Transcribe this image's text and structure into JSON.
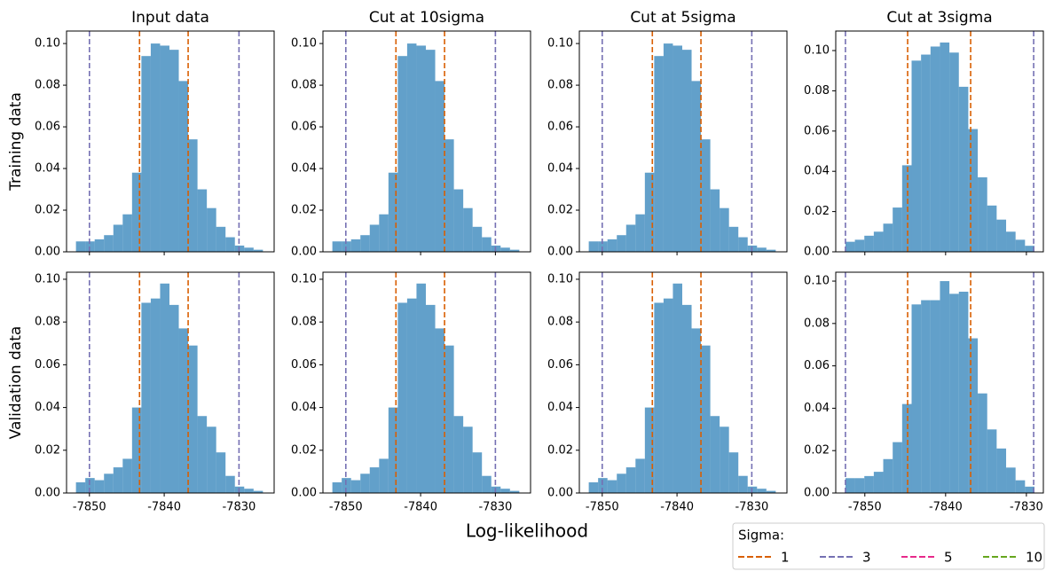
{
  "figure": {
    "xlabel": "Log-likelihood",
    "legend": {
      "title": "Sigma:",
      "entries": [
        {
          "label": "1",
          "color": "#d95f02"
        },
        {
          "label": "3",
          "color": "#7570b3"
        },
        {
          "label": "5",
          "color": "#e7298a"
        },
        {
          "label": "10",
          "color": "#66a61e"
        }
      ]
    }
  },
  "chart_data": [
    {
      "type": "histogram",
      "title": "Input data",
      "ylabel": "Training data",
      "color": "#1f77b4",
      "alpha": 0.7,
      "bins": [
        -7851.8,
        -7850.55,
        -7849.3,
        -7848.05,
        -7846.8,
        -7845.55,
        -7844.3,
        -7843.05,
        -7841.8,
        -7840.55,
        -7839.3,
        -7838.05,
        -7836.8,
        -7835.55,
        -7834.3,
        -7833.05,
        -7831.8,
        -7830.55,
        -7829.3,
        -7828.05,
        -7826.8
      ],
      "values": [
        0.005,
        0.005,
        0.006,
        0.008,
        0.013,
        0.018,
        0.038,
        0.094,
        0.1,
        0.099,
        0.097,
        0.082,
        0.054,
        0.03,
        0.021,
        0.012,
        0.007,
        0.003,
        0.002,
        0.001
      ],
      "xlim": [
        -7853.06,
        -7825.3
      ],
      "ylim": [
        0,
        0.106
      ],
      "xticks": [
        -7850,
        -7840,
        -7830
      ],
      "yticks": [
        {
          "value": 0,
          "label": "0.00"
        },
        0.02,
        0.04,
        0.06,
        0.08,
        {
          "value": 0.1,
          "label": "0.10"
        }
      ],
      "vlines": [
        {
          "value": -7843.3,
          "color": "#d95f02"
        },
        {
          "value": -7836.8,
          "color": "#d95f02"
        },
        {
          "value": -7850.0,
          "color": "#7570b3"
        },
        {
          "value": -7830.0,
          "color": "#7570b3"
        }
      ]
    },
    {
      "type": "histogram",
      "title": "Cut at 10sigma",
      "color": "#1f77b4",
      "alpha": 0.7,
      "bins": [
        -7851.8,
        -7850.55,
        -7849.3,
        -7848.05,
        -7846.8,
        -7845.55,
        -7844.3,
        -7843.05,
        -7841.8,
        -7840.55,
        -7839.3,
        -7838.05,
        -7836.8,
        -7835.55,
        -7834.3,
        -7833.05,
        -7831.8,
        -7830.55,
        -7829.3,
        -7828.05,
        -7826.8
      ],
      "values": [
        0.005,
        0.005,
        0.006,
        0.008,
        0.013,
        0.018,
        0.038,
        0.094,
        0.1,
        0.099,
        0.097,
        0.082,
        0.054,
        0.03,
        0.021,
        0.012,
        0.007,
        0.003,
        0.002,
        0.001
      ],
      "xlim": [
        -7853.06,
        -7825.3
      ],
      "ylim": [
        0,
        0.106
      ],
      "xticks": [
        -7850,
        -7840,
        -7830
      ],
      "yticks": [
        {
          "value": 0,
          "label": "0.00"
        },
        0.02,
        0.04,
        0.06,
        0.08,
        {
          "value": 0.1,
          "label": "0.10"
        }
      ],
      "vlines": [
        {
          "value": -7843.3,
          "color": "#d95f02"
        },
        {
          "value": -7836.8,
          "color": "#d95f02"
        },
        {
          "value": -7850.0,
          "color": "#7570b3"
        },
        {
          "value": -7830.0,
          "color": "#7570b3"
        }
      ]
    },
    {
      "type": "histogram",
      "title": "Cut at 5sigma",
      "color": "#1f77b4",
      "alpha": 0.7,
      "bins": [
        -7851.8,
        -7850.55,
        -7849.3,
        -7848.05,
        -7846.8,
        -7845.55,
        -7844.3,
        -7843.05,
        -7841.8,
        -7840.55,
        -7839.3,
        -7838.05,
        -7836.8,
        -7835.55,
        -7834.3,
        -7833.05,
        -7831.8,
        -7830.55,
        -7829.3,
        -7828.05,
        -7826.8
      ],
      "values": [
        0.005,
        0.005,
        0.006,
        0.008,
        0.013,
        0.018,
        0.038,
        0.094,
        0.1,
        0.099,
        0.097,
        0.082,
        0.054,
        0.03,
        0.021,
        0.012,
        0.007,
        0.003,
        0.002,
        0.001
      ],
      "xlim": [
        -7853.06,
        -7825.3
      ],
      "ylim": [
        0,
        0.106
      ],
      "xticks": [
        -7850,
        -7840,
        -7830
      ],
      "yticks": [
        {
          "value": 0,
          "label": "0.00"
        },
        0.02,
        0.04,
        0.06,
        0.08,
        {
          "value": 0.1,
          "label": "0.10"
        }
      ],
      "vlines": [
        {
          "value": -7843.3,
          "color": "#d95f02"
        },
        {
          "value": -7836.8,
          "color": "#d95f02"
        },
        {
          "value": -7850.0,
          "color": "#7570b3"
        },
        {
          "value": -7830.0,
          "color": "#7570b3"
        }
      ]
    },
    {
      "type": "histogram",
      "title": "Cut at 3sigma",
      "color": "#1f77b4",
      "alpha": 0.7,
      "bins": [
        -7852.4,
        -7851.23,
        -7850.06,
        -7848.89,
        -7847.72,
        -7846.55,
        -7845.38,
        -7844.21,
        -7843.04,
        -7841.87,
        -7840.7,
        -7839.53,
        -7838.36,
        -7837.19,
        -7836.02,
        -7834.85,
        -7833.68,
        -7832.51,
        -7831.34,
        -7830.17,
        -7829.0
      ],
      "values": [
        0.005,
        0.006,
        0.008,
        0.01,
        0.014,
        0.022,
        0.043,
        0.095,
        0.098,
        0.102,
        0.104,
        0.099,
        0.082,
        0.061,
        0.037,
        0.023,
        0.016,
        0.01,
        0.006,
        0.003
      ],
      "xlim": [
        -7853.6,
        -7827.9
      ],
      "ylim": [
        0,
        0.1097
      ],
      "xticks": [
        -7850,
        -7840,
        -7830
      ],
      "yticks": [
        {
          "value": 0,
          "label": "0.00"
        },
        0.02,
        0.04,
        0.06,
        0.08,
        {
          "value": 0.1,
          "label": "0.10"
        }
      ],
      "vlines": [
        {
          "value": -7844.7,
          "color": "#d95f02"
        },
        {
          "value": -7836.9,
          "color": "#d95f02"
        },
        {
          "value": -7852.4,
          "color": "#7570b3"
        },
        {
          "value": -7829.1,
          "color": "#7570b3"
        }
      ]
    },
    {
      "type": "histogram",
      "ylabel": "Validation data",
      "color": "#1f77b4",
      "alpha": 0.7,
      "bins": [
        -7851.8,
        -7850.55,
        -7849.3,
        -7848.05,
        -7846.8,
        -7845.55,
        -7844.3,
        -7843.05,
        -7841.8,
        -7840.55,
        -7839.3,
        -7838.05,
        -7836.8,
        -7835.55,
        -7834.3,
        -7833.05,
        -7831.8,
        -7830.55,
        -7829.3,
        -7828.05,
        -7826.8
      ],
      "values": [
        0.005,
        0.007,
        0.006,
        0.009,
        0.012,
        0.016,
        0.04,
        0.089,
        0.091,
        0.098,
        0.088,
        0.077,
        0.069,
        0.036,
        0.031,
        0.019,
        0.008,
        0.003,
        0.002,
        0.001
      ],
      "xlim": [
        -7853.06,
        -7825.3
      ],
      "ylim": [
        0,
        0.1033
      ],
      "xticks": [
        -7850,
        -7840,
        -7830
      ],
      "yticks": [
        {
          "value": 0,
          "label": "0.00"
        },
        0.02,
        0.04,
        0.06,
        0.08,
        {
          "value": 0.1,
          "label": "0.10"
        }
      ],
      "vlines": [
        {
          "value": -7843.3,
          "color": "#d95f02"
        },
        {
          "value": -7836.8,
          "color": "#d95f02"
        },
        {
          "value": -7850.0,
          "color": "#7570b3"
        },
        {
          "value": -7830.0,
          "color": "#7570b3"
        }
      ]
    },
    {
      "type": "histogram",
      "color": "#1f77b4",
      "alpha": 0.7,
      "bins": [
        -7851.8,
        -7850.55,
        -7849.3,
        -7848.05,
        -7846.8,
        -7845.55,
        -7844.3,
        -7843.05,
        -7841.8,
        -7840.55,
        -7839.3,
        -7838.05,
        -7836.8,
        -7835.55,
        -7834.3,
        -7833.05,
        -7831.8,
        -7830.55,
        -7829.3,
        -7828.05,
        -7826.8
      ],
      "values": [
        0.005,
        0.007,
        0.006,
        0.009,
        0.012,
        0.016,
        0.04,
        0.089,
        0.091,
        0.098,
        0.088,
        0.077,
        0.069,
        0.036,
        0.031,
        0.019,
        0.008,
        0.003,
        0.002,
        0.001
      ],
      "xlim": [
        -7853.06,
        -7825.3
      ],
      "ylim": [
        0,
        0.1033
      ],
      "xticks": [
        -7850,
        -7840,
        -7830
      ],
      "yticks": [
        {
          "value": 0,
          "label": "0.00"
        },
        0.02,
        0.04,
        0.06,
        0.08,
        {
          "value": 0.1,
          "label": "0.10"
        }
      ],
      "vlines": [
        {
          "value": -7843.3,
          "color": "#d95f02"
        },
        {
          "value": -7836.8,
          "color": "#d95f02"
        },
        {
          "value": -7850.0,
          "color": "#7570b3"
        },
        {
          "value": -7830.0,
          "color": "#7570b3"
        }
      ]
    },
    {
      "type": "histogram",
      "color": "#1f77b4",
      "alpha": 0.7,
      "bins": [
        -7851.8,
        -7850.55,
        -7849.3,
        -7848.05,
        -7846.8,
        -7845.55,
        -7844.3,
        -7843.05,
        -7841.8,
        -7840.55,
        -7839.3,
        -7838.05,
        -7836.8,
        -7835.55,
        -7834.3,
        -7833.05,
        -7831.8,
        -7830.55,
        -7829.3,
        -7828.05,
        -7826.8
      ],
      "values": [
        0.005,
        0.007,
        0.006,
        0.009,
        0.012,
        0.016,
        0.04,
        0.089,
        0.091,
        0.098,
        0.088,
        0.077,
        0.069,
        0.036,
        0.031,
        0.019,
        0.008,
        0.003,
        0.002,
        0.001
      ],
      "xlim": [
        -7853.06,
        -7825.3
      ],
      "ylim": [
        0,
        0.1033
      ],
      "xticks": [
        -7850,
        -7840,
        -7830
      ],
      "yticks": [
        {
          "value": 0,
          "label": "0.00"
        },
        0.02,
        0.04,
        0.06,
        0.08,
        {
          "value": 0.1,
          "label": "0.10"
        }
      ],
      "vlines": [
        {
          "value": -7843.3,
          "color": "#d95f02"
        },
        {
          "value": -7836.8,
          "color": "#d95f02"
        },
        {
          "value": -7850.0,
          "color": "#7570b3"
        },
        {
          "value": -7830.0,
          "color": "#7570b3"
        }
      ]
    },
    {
      "type": "histogram",
      "color": "#1f77b4",
      "alpha": 0.7,
      "bins": [
        -7852.4,
        -7851.23,
        -7850.06,
        -7848.89,
        -7847.72,
        -7846.55,
        -7845.38,
        -7844.21,
        -7843.04,
        -7841.87,
        -7840.7,
        -7839.53,
        -7838.36,
        -7837.19,
        -7836.02,
        -7834.85,
        -7833.68,
        -7832.51,
        -7831.34,
        -7830.17,
        -7829.0
      ],
      "values": [
        0.007,
        0.007,
        0.008,
        0.01,
        0.016,
        0.024,
        0.042,
        0.089,
        0.091,
        0.091,
        0.1,
        0.094,
        0.095,
        0.073,
        0.047,
        0.03,
        0.021,
        0.012,
        0.006,
        0.003
      ],
      "xlim": [
        -7853.6,
        -7827.9
      ],
      "ylim": [
        0,
        0.1042
      ],
      "xticks": [
        -7850,
        -7840,
        -7830
      ],
      "yticks": [
        {
          "value": 0,
          "label": "0.00"
        },
        0.02,
        0.04,
        0.06,
        0.08,
        {
          "value": 0.1,
          "label": "0.10"
        }
      ],
      "vlines": [
        {
          "value": -7844.7,
          "color": "#d95f02"
        },
        {
          "value": -7836.9,
          "color": "#d95f02"
        },
        {
          "value": -7852.4,
          "color": "#7570b3"
        },
        {
          "value": -7829.1,
          "color": "#7570b3"
        }
      ]
    }
  ]
}
